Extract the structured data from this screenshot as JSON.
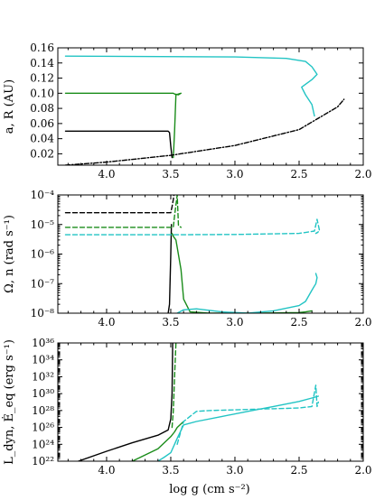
{
  "figure": {
    "xlabel": "log g (cm s⁻²)"
  },
  "colors": {
    "black": "#000000",
    "green": "#1a8c1a",
    "cyan": "#22c4c4"
  },
  "chart_data": [
    {
      "type": "line",
      "ylabel": "a, R (AU)",
      "xlim": [
        4.38,
        2.0
      ],
      "ylim": [
        0.005,
        0.16
      ],
      "xscale": "linear",
      "yscale": "linear",
      "xticks": [
        4.0,
        3.5,
        3.0,
        2.5,
        2.0
      ],
      "xtick_labels": [
        "4.0",
        "3.5",
        "3.0",
        "2.5",
        "2.0"
      ],
      "yticks": [
        0.02,
        0.04,
        0.06,
        0.08,
        0.1,
        0.12,
        0.14,
        0.16
      ],
      "ytick_labels": [
        "0.02",
        "0.04",
        "0.06",
        "0.08",
        "0.10",
        "0.12",
        "0.14",
        "0.16"
      ],
      "series": [
        {
          "color": "black",
          "dash": "solid",
          "x": [
            4.32,
            3.52,
            3.51,
            3.5,
            3.49
          ],
          "y": [
            0.05,
            0.05,
            0.048,
            0.03,
            0.015
          ]
        },
        {
          "color": "green",
          "dash": "solid",
          "x": [
            4.32,
            3.48,
            3.47,
            3.44,
            3.42,
            3.46,
            3.47,
            3.48
          ],
          "y": [
            0.1,
            0.1,
            0.099,
            0.098,
            0.1,
            0.098,
            0.05,
            0.015
          ]
        },
        {
          "color": "cyan",
          "dash": "solid",
          "x": [
            4.32,
            3.0,
            2.6,
            2.45,
            2.4,
            2.36,
            2.4,
            2.48,
            2.45,
            2.4,
            2.38
          ],
          "y": [
            0.149,
            0.148,
            0.146,
            0.142,
            0.135,
            0.125,
            0.118,
            0.108,
            0.098,
            0.085,
            0.07
          ]
        },
        {
          "color": "black",
          "dash": "dashdot",
          "x": [
            4.32,
            4.0,
            3.5,
            3.0,
            2.5,
            2.2,
            2.15
          ],
          "y": [
            0.005,
            0.009,
            0.018,
            0.031,
            0.052,
            0.082,
            0.092
          ]
        }
      ]
    },
    {
      "type": "line",
      "ylabel": "Ω, n (rad s⁻¹)",
      "xlim": [
        4.38,
        2.0
      ],
      "ylim": [
        1e-08,
        0.0001
      ],
      "xscale": "linear",
      "yscale": "log",
      "xticks": [
        4.0,
        3.5,
        3.0,
        2.5,
        2.0
      ],
      "xtick_labels": [
        "4.0",
        "3.5",
        "3.0",
        "2.5",
        "2.0"
      ],
      "yticks": [
        1e-08,
        1e-07,
        1e-06,
        1e-05,
        0.0001
      ],
      "ytick_labels": [
        "10⁻⁸",
        "10⁻⁷",
        "10⁻⁶",
        "10⁻⁵",
        "10⁻⁴"
      ],
      "series": [
        {
          "color": "black",
          "dash": "dashed",
          "x": [
            4.32,
            3.5,
            3.49,
            3.48,
            3.475
          ],
          "y": [
            2.5e-05,
            2.5e-05,
            4e-05,
            7e-05,
            0.0001
          ]
        },
        {
          "color": "black",
          "dash": "solid",
          "x": [
            3.52,
            3.51,
            3.5,
            3.495
          ],
          "y": [
            1e-08,
            2e-08,
            1e-06,
            1e-05
          ]
        },
        {
          "color": "green",
          "dash": "dashed",
          "x": [
            4.32,
            3.48,
            3.47,
            3.45,
            3.44,
            3.42
          ],
          "y": [
            8e-06,
            8e-06,
            2e-05,
            0.0001,
            9e-06,
            8e-06
          ]
        },
        {
          "color": "green",
          "dash": "solid",
          "x": [
            3.49,
            3.48,
            3.46,
            3.42,
            3.4,
            3.35,
            3.2,
            3.0,
            2.8,
            2.5,
            2.45,
            2.4
          ],
          "y": [
            5e-06,
            4e-06,
            3e-06,
            3e-07,
            3e-08,
            1.1e-08,
            1e-08,
            1e-08,
            1e-08,
            1.05e-08,
            1.1e-08,
            1.2e-08
          ]
        },
        {
          "color": "cyan",
          "dash": "dashed",
          "x": [
            4.32,
            3.5,
            3.0,
            2.5,
            2.38,
            2.36,
            2.34,
            2.37,
            2.35
          ],
          "y": [
            4.5e-06,
            4.5e-06,
            4.6e-06,
            5e-06,
            6e-06,
            1.5e-05,
            6e-06,
            5e-06,
            5.5e-06
          ]
        },
        {
          "color": "cyan",
          "dash": "solid",
          "x": [
            3.45,
            3.4,
            3.3,
            3.1,
            2.9,
            2.7,
            2.5,
            2.45,
            2.4,
            2.37,
            2.36,
            2.37
          ],
          "y": [
            1e-08,
            1.3e-08,
            1.4e-08,
            1.1e-08,
            1e-08,
            1.2e-08,
            1.8e-08,
            2.5e-08,
            6e-08,
            1e-07,
            1.6e-07,
            2.2e-07
          ]
        }
      ]
    },
    {
      "type": "line",
      "ylabel": "L_dyn, Ė_eq (erg s⁻¹)",
      "xlim": [
        4.38,
        2.0
      ],
      "ylim": [
        1e+22,
        1e+36
      ],
      "xscale": "linear",
      "yscale": "log",
      "xticks": [
        4.0,
        3.5,
        3.0,
        2.5,
        2.0
      ],
      "xtick_labels": [
        "4.0",
        "3.5",
        "3.0",
        "2.5",
        "2.0"
      ],
      "yticks": [
        1e+22,
        1e+24,
        1e+26,
        1e+28,
        1e+30,
        1e+32,
        1e+34,
        1e+36
      ],
      "ytick_labels": [
        "10²²",
        "10²⁴",
        "10²⁶",
        "10²⁸",
        "10³⁰",
        "10³²",
        "10³⁴",
        "10³⁶"
      ],
      "series": [
        {
          "color": "black",
          "dash": "solid",
          "x": [
            4.22,
            4.0,
            3.8,
            3.6,
            3.52,
            3.5,
            3.49,
            3.485
          ],
          "y": [
            1e+22,
            1.5e+23,
            1.5e+24,
            1.2e+25,
            5e+25,
            1e+27,
            1e+30,
            1e+36
          ]
        },
        {
          "color": "green",
          "dash": "solid",
          "x": [
            3.8,
            3.6,
            3.5,
            3.47,
            3.45,
            3.4
          ],
          "y": [
            1e+22,
            3e+23,
            8e+24,
            3e+25,
            1e+26,
            5e+26
          ]
        },
        {
          "color": "green",
          "dash": "dashed",
          "x": [
            3.49,
            3.48,
            3.47,
            3.46
          ],
          "y": [
            1e+26,
            1e+28,
            1e+32,
            1e+36
          ]
        },
        {
          "color": "cyan",
          "dash": "solid",
          "x": [
            3.6,
            3.55,
            3.5,
            3.45,
            3.4,
            3.3,
            3.1,
            2.9,
            2.7,
            2.5,
            2.4,
            2.35
          ],
          "y": [
            1e+22,
            3e+22,
            1e+23,
            5e+24,
            2e+26,
            5e+26,
            2e+27,
            8e+27,
            3e+28,
            1.2e+29,
            3e+29,
            5e+29
          ]
        },
        {
          "color": "cyan",
          "dash": "dashed",
          "x": [
            3.45,
            3.4,
            3.3,
            3.2,
            3.0,
            2.8,
            2.6,
            2.5,
            2.4,
            2.37,
            2.36,
            2.35
          ],
          "y": [
            1e+24,
            5e+26,
            8e+27,
            1e+28,
            1.2e+28,
            1.5e+28,
            1.8e+28,
            2e+28,
            3e+28,
            1e+31,
            3e+28,
            1e+29
          ]
        }
      ]
    }
  ]
}
